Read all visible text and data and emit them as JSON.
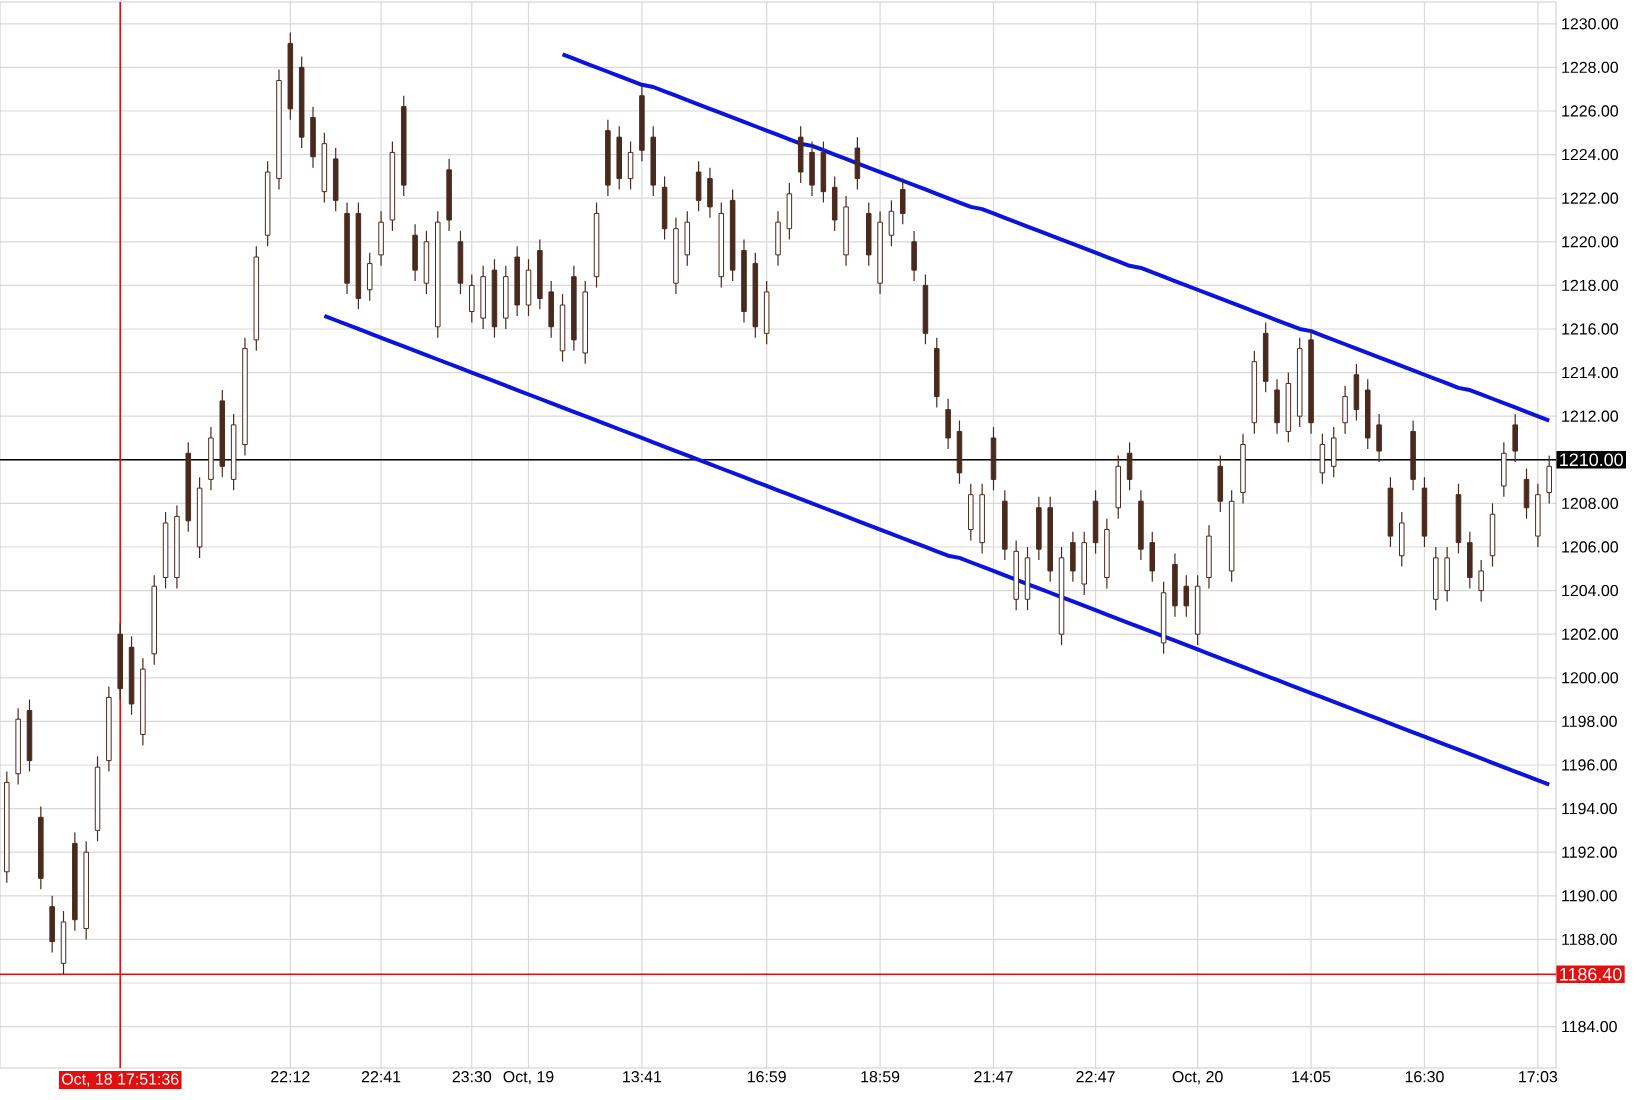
{
  "chart_data": {
    "type": "candlestick",
    "color": "#4a2a1e",
    "grid": true,
    "ylim": [
      1182.1,
      1231.0
    ],
    "categories": [
      null,
      null,
      null,
      null,
      null,
      null,
      null,
      null,
      null,
      null,
      "Oct, 18 17:51:36",
      null,
      null,
      null,
      null,
      null,
      null,
      null,
      null,
      null,
      null,
      null,
      null,
      null,
      null,
      "22:12",
      null,
      null,
      null,
      null,
      null,
      null,
      null,
      "22:41",
      null,
      null,
      null,
      null,
      null,
      null,
      null,
      "23:30",
      null,
      null,
      null,
      null,
      "Oct, 19",
      null,
      null,
      null,
      null,
      null,
      null,
      null,
      null,
      null,
      "13:41",
      null,
      null,
      null,
      null,
      null,
      null,
      null,
      null,
      null,
      null,
      "16:59",
      null,
      null,
      null,
      null,
      null,
      null,
      null,
      null,
      null,
      "18:59",
      null,
      null,
      null,
      null,
      null,
      null,
      null,
      null,
      null,
      "21:47",
      null,
      null,
      null,
      null,
      null,
      null,
      null,
      null,
      "22:47",
      null,
      null,
      null,
      null,
      null,
      null,
      null,
      null,
      "Oct, 20",
      null,
      null,
      null,
      null,
      null,
      null,
      null,
      null,
      null,
      "14:05",
      null,
      null,
      null,
      null,
      null,
      null,
      null,
      null,
      null,
      "16:30",
      null,
      null,
      null,
      null,
      null,
      null,
      null,
      null,
      null,
      "17:03",
      null
    ],
    "yticks": [
      {
        "value": 1184,
        "label": "1184.00"
      },
      {
        "value": 1186,
        "label": null
      },
      {
        "value": 1188,
        "label": "1188.00"
      },
      {
        "value": 1190,
        "label": "1190.00"
      },
      {
        "value": 1192,
        "label": "1192.00"
      },
      {
        "value": 1194,
        "label": "1194.00"
      },
      {
        "value": 1196,
        "label": "1196.00"
      },
      {
        "value": 1198,
        "label": "1198.00"
      },
      {
        "value": 1200,
        "label": "1200.00"
      },
      {
        "value": 1202,
        "label": "1202.00"
      },
      {
        "value": 1204,
        "label": "1204.00"
      },
      {
        "value": 1206,
        "label": "1206.00"
      },
      {
        "value": 1208,
        "label": "1208.00"
      },
      {
        "value": 1210,
        "label": null
      },
      {
        "value": 1212,
        "label": "1212.00"
      },
      {
        "value": 1214,
        "label": "1214.00"
      },
      {
        "value": 1216,
        "label": "1216.00"
      },
      {
        "value": 1218,
        "label": "1218.00"
      },
      {
        "value": 1220,
        "label": "1220.00"
      },
      {
        "value": 1222,
        "label": "1222.00"
      },
      {
        "value": 1224,
        "label": "1224.00"
      },
      {
        "value": 1226,
        "label": "1226.00"
      },
      {
        "value": 1228,
        "label": "1228.00"
      },
      {
        "value": 1230,
        "label": "1230.00"
      }
    ],
    "ohlc": [
      [
        1191.1,
        1195.7,
        1190.6,
        1195.2
      ],
      [
        1195.6,
        1198.6,
        1195.1,
        1198.1
      ],
      [
        1198.5,
        1199.0,
        1195.7,
        1196.2
      ],
      [
        1193.6,
        1194.1,
        1190.3,
        1190.8
      ],
      [
        1189.5,
        1190.0,
        1187.4,
        1187.9
      ],
      [
        1186.9,
        1189.3,
        1186.4,
        1188.8
      ],
      [
        1192.4,
        1192.9,
        1188.4,
        1188.9
      ],
      [
        1188.5,
        1192.5,
        1188.0,
        1192.0
      ],
      [
        1193.0,
        1196.4,
        1192.5,
        1195.9
      ],
      [
        1196.2,
        1199.6,
        1195.7,
        1199.1
      ],
      [
        1202.0,
        1202.5,
        1199.0,
        1199.5
      ],
      [
        1201.4,
        1201.9,
        1198.3,
        1198.8
      ],
      [
        1197.4,
        1200.9,
        1196.9,
        1200.4
      ],
      [
        1201.1,
        1204.7,
        1200.6,
        1204.2
      ],
      [
        1204.6,
        1207.6,
        1204.1,
        1207.1
      ],
      [
        1204.6,
        1207.9,
        1204.1,
        1207.4
      ],
      [
        1210.3,
        1210.8,
        1206.7,
        1207.2
      ],
      [
        1206.0,
        1209.2,
        1205.5,
        1208.7
      ],
      [
        1209.1,
        1211.5,
        1208.6,
        1211.0
      ],
      [
        1212.7,
        1213.2,
        1209.2,
        1209.7
      ],
      [
        1209.1,
        1212.1,
        1208.6,
        1211.6
      ],
      [
        1210.7,
        1215.6,
        1210.2,
        1215.1
      ],
      [
        1215.5,
        1219.8,
        1215.0,
        1219.3
      ],
      [
        1220.3,
        1223.7,
        1219.8,
        1223.2
      ],
      [
        1222.9,
        1227.9,
        1222.4,
        1227.4
      ],
      [
        1229.1,
        1229.6,
        1225.6,
        1226.1
      ],
      [
        1228.0,
        1228.5,
        1224.3,
        1224.8
      ],
      [
        1225.7,
        1226.2,
        1223.4,
        1223.9
      ],
      [
        1222.3,
        1225.0,
        1221.8,
        1224.5
      ],
      [
        1223.8,
        1224.3,
        1221.4,
        1221.9
      ],
      [
        1221.3,
        1221.8,
        1217.6,
        1218.1
      ],
      [
        1221.3,
        1221.8,
        1216.9,
        1217.4
      ],
      [
        1217.8,
        1219.5,
        1217.3,
        1219.0
      ],
      [
        1219.4,
        1221.4,
        1218.9,
        1220.9
      ],
      [
        1221.0,
        1224.6,
        1220.5,
        1224.1
      ],
      [
        1226.2,
        1226.7,
        1222.1,
        1222.6
      ],
      [
        1220.3,
        1220.8,
        1218.2,
        1218.7
      ],
      [
        1218.1,
        1220.5,
        1217.6,
        1220.0
      ],
      [
        1216.1,
        1221.4,
        1215.6,
        1220.9
      ],
      [
        1223.3,
        1223.8,
        1220.5,
        1221.0
      ],
      [
        1220.0,
        1220.5,
        1217.6,
        1218.1
      ],
      [
        1216.8,
        1218.5,
        1216.3,
        1218.0
      ],
      [
        1216.5,
        1218.9,
        1216.0,
        1218.4
      ],
      [
        1218.7,
        1219.2,
        1215.6,
        1216.1
      ],
      [
        1216.5,
        1218.9,
        1216.0,
        1218.4
      ],
      [
        1219.3,
        1219.8,
        1216.6,
        1217.1
      ],
      [
        1217.1,
        1219.2,
        1216.6,
        1218.7
      ],
      [
        1219.6,
        1220.1,
        1216.9,
        1217.4
      ],
      [
        1217.7,
        1218.2,
        1215.6,
        1216.1
      ],
      [
        1215.0,
        1217.6,
        1214.5,
        1217.1
      ],
      [
        1218.4,
        1218.9,
        1215.0,
        1215.5
      ],
      [
        1214.9,
        1218.2,
        1214.4,
        1217.7
      ],
      [
        1218.4,
        1221.8,
        1217.9,
        1221.3
      ],
      [
        1225.1,
        1225.6,
        1222.1,
        1222.6
      ],
      [
        1224.8,
        1225.3,
        1222.4,
        1222.9
      ],
      [
        1222.9,
        1224.6,
        1222.4,
        1224.1
      ],
      [
        1226.7,
        1227.2,
        1223.7,
        1224.2
      ],
      [
        1224.8,
        1225.3,
        1222.1,
        1222.6
      ],
      [
        1222.5,
        1223.0,
        1220.1,
        1220.6
      ],
      [
        1218.1,
        1221.1,
        1217.6,
        1220.6
      ],
      [
        1219.4,
        1221.4,
        1218.9,
        1220.9
      ],
      [
        1223.2,
        1223.7,
        1221.4,
        1221.9
      ],
      [
        1222.9,
        1223.4,
        1221.1,
        1221.6
      ],
      [
        1218.4,
        1221.8,
        1217.9,
        1221.3
      ],
      [
        1221.9,
        1222.4,
        1218.2,
        1218.7
      ],
      [
        1219.6,
        1220.1,
        1216.3,
        1216.8
      ],
      [
        1219.0,
        1219.5,
        1215.6,
        1216.1
      ],
      [
        1215.8,
        1218.2,
        1215.3,
        1217.7
      ],
      [
        1219.4,
        1221.4,
        1218.9,
        1220.9
      ],
      [
        1220.6,
        1222.7,
        1220.1,
        1222.2
      ],
      [
        1224.8,
        1225.3,
        1222.7,
        1223.2
      ],
      [
        1224.1,
        1224.6,
        1222.1,
        1222.6
      ],
      [
        1224.1,
        1224.6,
        1221.8,
        1222.3
      ],
      [
        1222.5,
        1223.0,
        1220.5,
        1221.0
      ],
      [
        1219.4,
        1222.1,
        1218.9,
        1221.6
      ],
      [
        1224.3,
        1224.8,
        1222.4,
        1222.9
      ],
      [
        1221.3,
        1221.8,
        1218.9,
        1219.4
      ],
      [
        1218.1,
        1221.4,
        1217.6,
        1220.9
      ],
      [
        1220.3,
        1221.9,
        1219.8,
        1221.4
      ],
      [
        1222.4,
        1222.9,
        1220.8,
        1221.3
      ],
      [
        1220.0,
        1220.5,
        1218.2,
        1218.7
      ],
      [
        1218.0,
        1218.5,
        1215.3,
        1215.8
      ],
      [
        1215.1,
        1215.6,
        1212.4,
        1212.9
      ],
      [
        1212.3,
        1212.8,
        1210.5,
        1211.0
      ],
      [
        1211.3,
        1211.8,
        1208.9,
        1209.4
      ],
      [
        1206.8,
        1208.9,
        1206.3,
        1208.4
      ],
      [
        1206.2,
        1208.9,
        1205.7,
        1208.4
      ],
      [
        1211.0,
        1211.5,
        1208.6,
        1209.1
      ],
      [
        1208.1,
        1208.6,
        1205.4,
        1205.9
      ],
      [
        1203.6,
        1206.3,
        1203.1,
        1205.8
      ],
      [
        1203.6,
        1206.0,
        1203.1,
        1205.5
      ],
      [
        1207.8,
        1208.3,
        1205.4,
        1205.9
      ],
      [
        1207.8,
        1208.3,
        1204.4,
        1204.9
      ],
      [
        1202.0,
        1206.0,
        1201.5,
        1205.5
      ],
      [
        1206.2,
        1206.7,
        1204.4,
        1204.9
      ],
      [
        1204.3,
        1206.7,
        1203.8,
        1206.2
      ],
      [
        1208.1,
        1208.6,
        1205.7,
        1206.2
      ],
      [
        1204.6,
        1207.3,
        1204.1,
        1206.8
      ],
      [
        1207.8,
        1210.2,
        1207.3,
        1209.7
      ],
      [
        1210.3,
        1210.8,
        1208.6,
        1209.1
      ],
      [
        1208.1,
        1208.6,
        1205.4,
        1205.9
      ],
      [
        1206.2,
        1206.7,
        1204.4,
        1204.9
      ],
      [
        1201.6,
        1204.4,
        1201.1,
        1203.9
      ],
      [
        1205.2,
        1205.7,
        1202.8,
        1203.3
      ],
      [
        1204.2,
        1204.7,
        1202.8,
        1203.3
      ],
      [
        1202.0,
        1204.7,
        1201.5,
        1204.2
      ],
      [
        1204.6,
        1207.0,
        1204.1,
        1206.5
      ],
      [
        1209.7,
        1210.2,
        1207.6,
        1208.1
      ],
      [
        1204.9,
        1208.6,
        1204.4,
        1208.1
      ],
      [
        1208.5,
        1211.2,
        1208.0,
        1210.7
      ],
      [
        1211.7,
        1215.0,
        1211.2,
        1214.5
      ],
      [
        1215.8,
        1216.3,
        1213.1,
        1213.6
      ],
      [
        1213.2,
        1213.7,
        1211.2,
        1211.7
      ],
      [
        1211.3,
        1214.0,
        1210.8,
        1213.5
      ],
      [
        1212.0,
        1215.6,
        1211.5,
        1215.1
      ],
      [
        1215.5,
        1216.0,
        1211.2,
        1211.7
      ],
      [
        1209.4,
        1211.2,
        1208.9,
        1210.7
      ],
      [
        1209.7,
        1211.5,
        1209.2,
        1211.0
      ],
      [
        1211.7,
        1213.4,
        1211.2,
        1212.9
      ],
      [
        1213.9,
        1214.4,
        1211.8,
        1212.3
      ],
      [
        1213.2,
        1213.7,
        1210.5,
        1211.0
      ],
      [
        1211.6,
        1212.1,
        1209.9,
        1210.4
      ],
      [
        1208.7,
        1209.2,
        1206.0,
        1206.5
      ],
      [
        1205.6,
        1207.6,
        1205.1,
        1207.1
      ],
      [
        1211.3,
        1211.8,
        1208.6,
        1209.1
      ],
      [
        1208.7,
        1209.2,
        1206.0,
        1206.5
      ],
      [
        1203.6,
        1206.0,
        1203.1,
        1205.5
      ],
      [
        1204.0,
        1206.0,
        1203.5,
        1205.5
      ],
      [
        1208.4,
        1208.9,
        1205.7,
        1206.2
      ],
      [
        1206.2,
        1206.7,
        1204.1,
        1204.6
      ],
      [
        1204.0,
        1205.4,
        1203.5,
        1204.9
      ],
      [
        1205.6,
        1208.0,
        1205.1,
        1207.5
      ],
      [
        1208.8,
        1210.8,
        1208.3,
        1210.3
      ],
      [
        1211.6,
        1212.1,
        1209.9,
        1210.4
      ],
      [
        1209.1,
        1209.6,
        1207.3,
        1207.8
      ],
      [
        1206.5,
        1208.9,
        1206.0,
        1208.4
      ],
      [
        1208.5,
        1210.2,
        1208.0,
        1209.7
      ]
    ],
    "series": [
      {
        "type": "line",
        "color": "#0a14dc",
        "values": [
          null,
          null,
          null,
          null,
          null,
          null,
          null,
          null,
          null,
          null,
          null,
          null,
          null,
          null,
          null,
          null,
          null,
          null,
          null,
          null,
          null,
          null,
          null,
          null,
          null,
          null,
          null,
          null,
          null,
          null,
          null,
          null,
          null,
          null,
          null,
          null,
          null,
          null,
          null,
          null,
          null,
          null,
          null,
          null,
          null,
          null,
          null,
          null,
          null,
          1228.6,
          1228.4,
          1228.2,
          1228.0,
          1227.8,
          1227.6,
          1227.4,
          1227.2,
          1227.1,
          1226.9,
          1226.7,
          1226.5,
          1226.3,
          1226.1,
          1225.9,
          1225.7,
          1225.5,
          1225.3,
          1225.1,
          1224.9,
          1224.7,
          1224.5,
          1224.4,
          1224.2,
          1224.0,
          1223.8,
          1223.6,
          1223.4,
          1223.2,
          1223.0,
          1222.8,
          1222.6,
          1222.4,
          1222.2,
          1222.0,
          1221.8,
          1221.6,
          1221.5,
          1221.3,
          1221.1,
          1220.9,
          1220.7,
          1220.5,
          1220.3,
          1220.1,
          1219.9,
          1219.7,
          1219.5,
          1219.3,
          1219.1,
          1218.9,
          1218.8,
          1218.6,
          1218.4,
          1218.2,
          1218.0,
          1217.8,
          1217.6,
          1217.4,
          1217.2,
          1217.0,
          1216.8,
          1216.6,
          1216.4,
          1216.2,
          1216.0,
          1215.9,
          1215.7,
          1215.5,
          1215.3,
          1215.1,
          1214.9,
          1214.7,
          1214.5,
          1214.3,
          1214.1,
          1213.9,
          1213.7,
          1213.5,
          1213.3,
          1213.2,
          1213.0,
          1212.8,
          1212.6,
          1212.4,
          1212.2,
          1212.0,
          1211.8
        ]
      },
      {
        "type": "line",
        "color": "#0a14dc",
        "values": [
          null,
          null,
          null,
          null,
          null,
          null,
          null,
          null,
          null,
          null,
          null,
          null,
          null,
          null,
          null,
          null,
          null,
          null,
          null,
          null,
          null,
          null,
          null,
          null,
          null,
          null,
          null,
          null,
          1216.6,
          1216.4,
          1216.2,
          1216.0,
          1215.8,
          1215.6,
          1215.4,
          1215.2,
          1215.0,
          1214.8,
          1214.6,
          1214.4,
          1214.2,
          1214.0,
          1213.8,
          1213.6,
          1213.4,
          1213.2,
          1213.0,
          1212.8,
          1212.6,
          1212.4,
          1212.2,
          1212.0,
          1211.8,
          1211.6,
          1211.4,
          1211.2,
          1211.0,
          1210.8,
          1210.6,
          1210.4,
          1210.2,
          1210.0,
          1209.8,
          1209.6,
          1209.4,
          1209.2,
          1209.0,
          1208.8,
          1208.6,
          1208.4,
          1208.2,
          1208.0,
          1207.8,
          1207.6,
          1207.4,
          1207.2,
          1207.0,
          1206.8,
          1206.6,
          1206.4,
          1206.2,
          1206.0,
          1205.8,
          1205.6,
          1205.5,
          1205.3,
          1205.1,
          1204.9,
          1204.7,
          1204.5,
          1204.3,
          1204.1,
          1203.9,
          1203.7,
          1203.5,
          1203.3,
          1203.1,
          1202.9,
          1202.7,
          1202.5,
          1202.3,
          1202.1,
          1201.9,
          1201.7,
          1201.5,
          1201.3,
          1201.1,
          1200.9,
          1200.7,
          1200.5,
          1200.3,
          1200.1,
          1199.9,
          1199.7,
          1199.5,
          1199.3,
          1199.1,
          1198.9,
          1198.7,
          1198.5,
          1198.3,
          1198.1,
          1197.9,
          1197.7,
          1197.5,
          1197.3,
          1197.1,
          1196.9,
          1196.7,
          1196.5,
          1196.3,
          1196.1,
          1195.9,
          1195.7,
          1195.5,
          1195.3,
          1195.1
        ]
      }
    ],
    "ref_lines": [
      {
        "axis": "y",
        "value": 1210.0,
        "label": "1210.00",
        "color": "#000000"
      },
      {
        "axis": "y",
        "value": 1186.4,
        "label": "1186.40",
        "color": "#e01010"
      },
      {
        "axis": "x",
        "value": "Oct, 18 17:51:36",
        "color": "#e01010"
      }
    ]
  }
}
